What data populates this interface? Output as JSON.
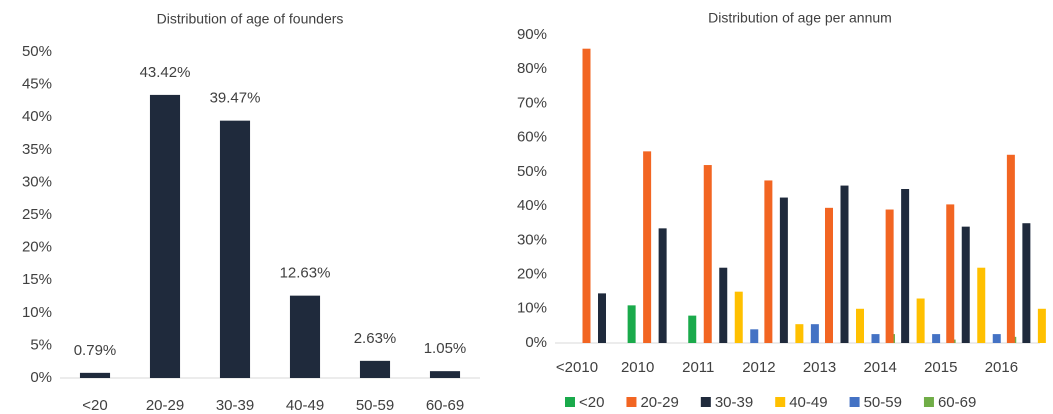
{
  "chart_data": [
    {
      "type": "bar",
      "title": "Distribution of age of founders",
      "categories": [
        "<20",
        "20-29",
        "30-39",
        "40-49",
        "50-59",
        "60-69"
      ],
      "values": [
        0.79,
        43.42,
        39.47,
        12.63,
        2.63,
        1.05
      ],
      "value_labels": [
        "0.79%",
        "43.42%",
        "39.47%",
        "12.63%",
        "2.63%",
        "1.05%"
      ],
      "color": "#1f2a3c",
      "ylim": [
        0,
        50
      ],
      "yticks": [
        {
          "value": 0,
          "label": "0%"
        },
        {
          "value": 5,
          "label": "5%"
        },
        {
          "value": 10,
          "label": "10%"
        },
        {
          "value": 15,
          "label": "15%"
        },
        {
          "value": 20,
          "label": "20%"
        },
        {
          "value": 25,
          "label": "25%"
        },
        {
          "value": 30,
          "label": "30%"
        },
        {
          "value": 35,
          "label": "35%"
        },
        {
          "value": 40,
          "label": "40%"
        },
        {
          "value": 45,
          "label": "45%"
        },
        {
          "value": 50,
          "label": "50%"
        }
      ]
    },
    {
      "type": "bar",
      "title": "Distribution of age per annum",
      "categories": [
        "<2010",
        "2010",
        "2011",
        "2012",
        "2013",
        "2014",
        "2015",
        "2016"
      ],
      "series": [
        {
          "name": "<20",
          "color": "#1aaa4b",
          "values": [
            0,
            11,
            8,
            0,
            0,
            0,
            0,
            0
          ]
        },
        {
          "name": "20-29",
          "color": "#f26522",
          "values": [
            86,
            56,
            52,
            47.5,
            39.5,
            39,
            40.5,
            55
          ]
        },
        {
          "name": "30-39",
          "color": "#1f2a3c",
          "values": [
            14.5,
            33.5,
            22,
            42.5,
            46,
            45,
            34,
            35
          ]
        },
        {
          "name": "40-49",
          "color": "#ffc000",
          "values": [
            0,
            0,
            15,
            5.5,
            10,
            13,
            22,
            10
          ]
        },
        {
          "name": "50-59",
          "color": "#4472c4",
          "values": [
            0,
            0,
            4,
            5.5,
            2.6,
            2.6,
            2.6,
            0
          ]
        },
        {
          "name": "60-69",
          "color": "#70ad47",
          "values": [
            0,
            0,
            0,
            0,
            2.6,
            1,
            1.8,
            0
          ]
        }
      ],
      "legend": "bottom",
      "ylim": [
        0,
        90
      ],
      "yticks": [
        {
          "value": 0,
          "label": "0%"
        },
        {
          "value": 10,
          "label": "10%"
        },
        {
          "value": 20,
          "label": "20%"
        },
        {
          "value": 30,
          "label": "30%"
        },
        {
          "value": 40,
          "label": "40%"
        },
        {
          "value": 50,
          "label": "50%"
        },
        {
          "value": 60,
          "label": "60%"
        },
        {
          "value": 70,
          "label": "70%"
        },
        {
          "value": 80,
          "label": "80%"
        },
        {
          "value": 90,
          "label": "90%"
        }
      ]
    }
  ]
}
